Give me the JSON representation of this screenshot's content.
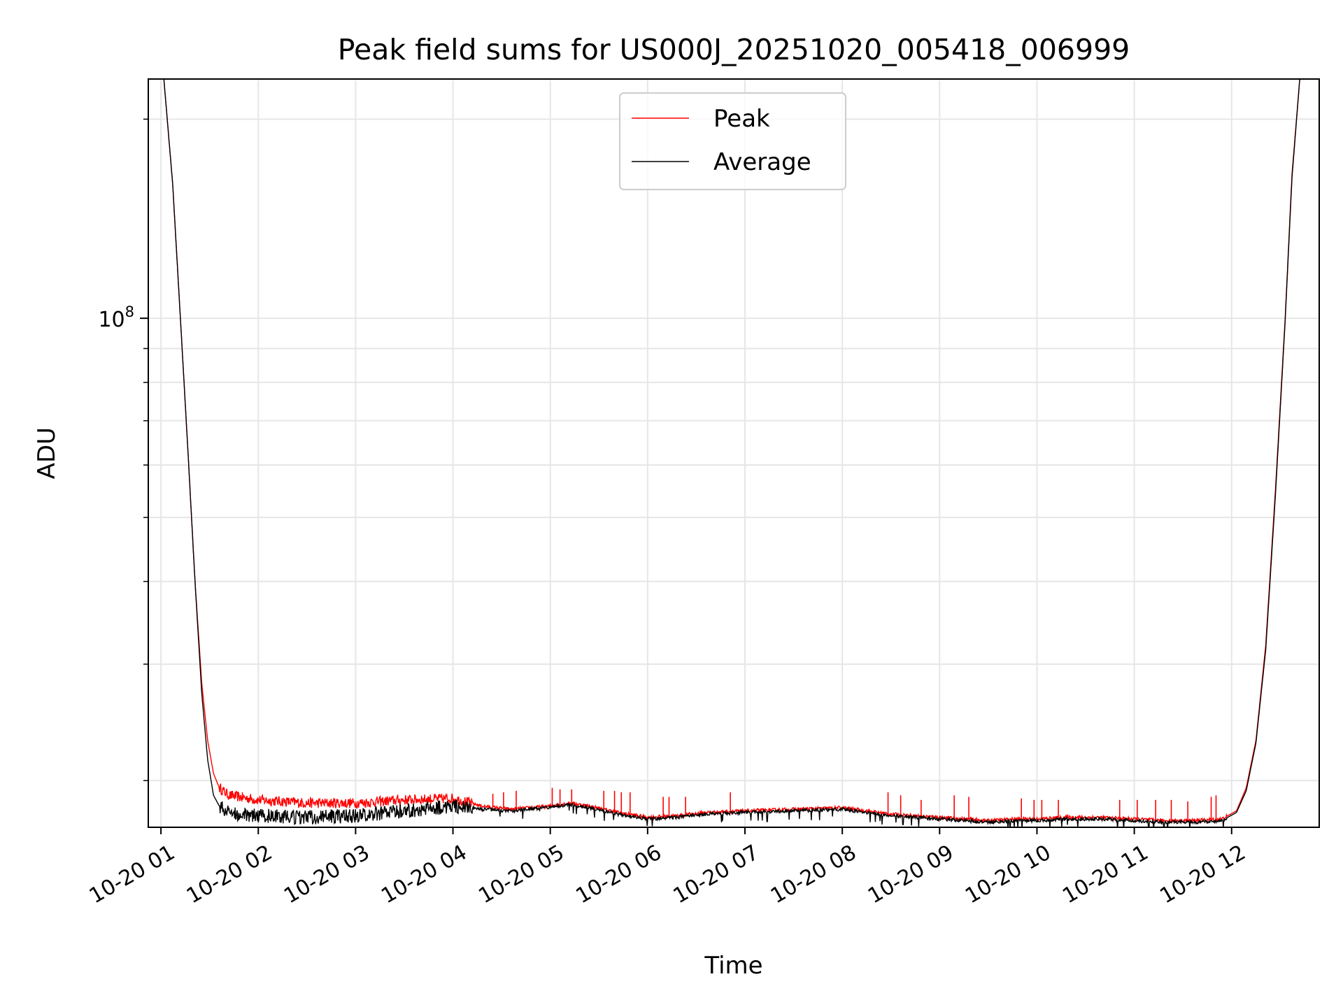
{
  "chart_data": {
    "type": "line",
    "title": "Peak field sums for US000J_20251020_005418_006999",
    "xlabel": "Time",
    "ylabel": "ADU",
    "yscale": "log",
    "ylim": [
      17000000,
      230000000
    ],
    "y_major_ticks": [
      {
        "value": 100000000,
        "label": "10",
        "exponent": "8"
      }
    ],
    "y_minor_ticks": [
      20000000,
      30000000,
      40000000,
      50000000,
      60000000,
      70000000,
      80000000,
      90000000,
      200000000
    ],
    "xlim": [
      0.87,
      12.9
    ],
    "x_ticks": [
      {
        "value": 1,
        "label": "10-20 01"
      },
      {
        "value": 2,
        "label": "10-20 02"
      },
      {
        "value": 3,
        "label": "10-20 03"
      },
      {
        "value": 4,
        "label": "10-20 04"
      },
      {
        "value": 5,
        "label": "10-20 05"
      },
      {
        "value": 6,
        "label": "10-20 06"
      },
      {
        "value": 7,
        "label": "10-20 07"
      },
      {
        "value": 8,
        "label": "10-20 08"
      },
      {
        "value": 9,
        "label": "10-20 09"
      },
      {
        "value": 10,
        "label": "10-20 10"
      },
      {
        "value": 11,
        "label": "10-20 11"
      },
      {
        "value": 12,
        "label": "10-20 12"
      }
    ],
    "grid": true,
    "legend_position": "top-center",
    "series": [
      {
        "name": "Peak",
        "color": "#ff0000",
        "x": [
          1.03,
          1.12,
          1.2,
          1.28,
          1.35,
          1.42,
          1.48,
          1.54,
          1.6,
          1.7,
          2.0,
          2.5,
          3.0,
          3.5,
          4.0,
          4.3,
          4.6,
          5.0,
          5.2,
          5.4,
          5.7,
          6.0,
          6.3,
          6.6,
          7.0,
          7.5,
          8.0,
          8.5,
          9.0,
          9.5,
          9.8,
          10.0,
          10.3,
          10.6,
          11.0,
          11.3,
          11.6,
          11.9,
          12.05,
          12.15,
          12.25,
          12.35,
          12.45,
          12.55,
          12.62,
          12.7
        ],
        "values": [
          230000000,
          160000000,
          100000000,
          62000000,
          40000000,
          28000000,
          23000000,
          20500000,
          19500000,
          19000000,
          18700000,
          18500000,
          18500000,
          18700000,
          18800000,
          18300000,
          18100000,
          18300000,
          18500000,
          18300000,
          17900000,
          17600000,
          17700000,
          17900000,
          18000000,
          18100000,
          18200000,
          17800000,
          17600000,
          17400000,
          17500000,
          17500000,
          17600000,
          17600000,
          17500000,
          17400000,
          17400000,
          17500000,
          18000000,
          19500000,
          23000000,
          32000000,
          55000000,
          100000000,
          165000000,
          230000000
        ],
        "spikes": [
          {
            "x": 4.41,
            "value": 19100000
          },
          {
            "x": 4.52,
            "value": 19200000
          },
          {
            "x": 4.65,
            "value": 19300000
          },
          {
            "x": 5.02,
            "value": 19500000
          },
          {
            "x": 5.1,
            "value": 19400000
          },
          {
            "x": 5.22,
            "value": 19400000
          },
          {
            "x": 5.55,
            "value": 19300000
          },
          {
            "x": 5.66,
            "value": 19300000
          },
          {
            "x": 5.73,
            "value": 19200000
          },
          {
            "x": 5.82,
            "value": 19200000
          },
          {
            "x": 6.16,
            "value": 18900000
          },
          {
            "x": 6.22,
            "value": 18900000
          },
          {
            "x": 6.39,
            "value": 18900000
          },
          {
            "x": 6.85,
            "value": 19200000
          },
          {
            "x": 8.47,
            "value": 19200000
          },
          {
            "x": 8.6,
            "value": 19000000
          },
          {
            "x": 8.81,
            "value": 18700000
          },
          {
            "x": 9.15,
            "value": 19000000
          },
          {
            "x": 9.3,
            "value": 18900000
          },
          {
            "x": 9.84,
            "value": 18800000
          },
          {
            "x": 9.97,
            "value": 18700000
          },
          {
            "x": 10.05,
            "value": 18700000
          },
          {
            "x": 10.22,
            "value": 18700000
          },
          {
            "x": 10.85,
            "value": 18700000
          },
          {
            "x": 11.03,
            "value": 18700000
          },
          {
            "x": 11.22,
            "value": 18700000
          },
          {
            "x": 11.38,
            "value": 18700000
          },
          {
            "x": 11.55,
            "value": 18600000
          },
          {
            "x": 11.79,
            "value": 18900000
          },
          {
            "x": 11.84,
            "value": 19000000
          }
        ]
      },
      {
        "name": "Average",
        "color": "#000000",
        "x": [
          1.03,
          1.12,
          1.2,
          1.28,
          1.35,
          1.42,
          1.48,
          1.54,
          1.6,
          1.7,
          2.0,
          2.5,
          3.0,
          3.5,
          4.0,
          4.3,
          4.6,
          5.0,
          5.2,
          5.4,
          5.7,
          6.0,
          6.3,
          6.6,
          7.0,
          7.5,
          8.0,
          8.5,
          9.0,
          9.5,
          9.8,
          10.0,
          10.3,
          10.6,
          11.0,
          11.3,
          11.6,
          11.9,
          12.05,
          12.15,
          12.25,
          12.35,
          12.45,
          12.55,
          12.62,
          12.7
        ],
        "values": [
          230000000,
          160000000,
          100000000,
          62000000,
          40000000,
          27000000,
          21500000,
          19000000,
          18300000,
          17900000,
          17700000,
          17600000,
          17700000,
          18000000,
          18300000,
          18100000,
          18000000,
          18200000,
          18400000,
          18200000,
          17800000,
          17500000,
          17600000,
          17800000,
          17900000,
          18000000,
          18100000,
          17700000,
          17500000,
          17300000,
          17400000,
          17400000,
          17500000,
          17500000,
          17400000,
          17300000,
          17300000,
          17400000,
          17900000,
          19300000,
          22800000,
          31500000,
          54000000,
          99000000,
          163000000,
          230000000
        ]
      }
    ]
  }
}
